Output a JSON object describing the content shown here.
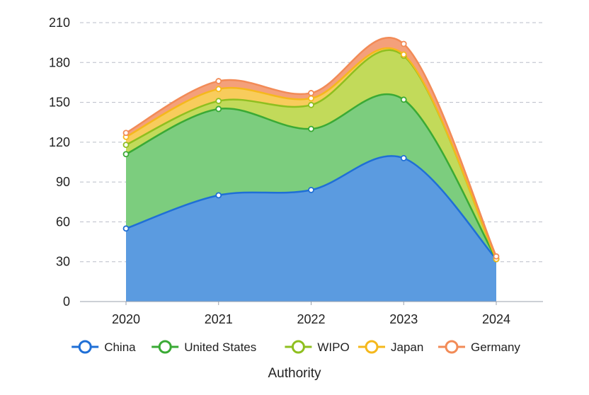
{
  "chart_data": {
    "type": "area",
    "stacked": true,
    "smooth": true,
    "categories": [
      "2020",
      "2021",
      "2022",
      "2023",
      "2024"
    ],
    "series": [
      {
        "name": "China",
        "values": [
          55,
          80,
          84,
          108,
          32
        ],
        "color": "#1f6fd6",
        "fill": "#5b9be0"
      },
      {
        "name": "United States",
        "values": [
          56,
          65,
          46,
          44,
          0
        ],
        "color": "#3aaa35",
        "fill": "#7ccd7e"
      },
      {
        "name": "WIPO",
        "values": [
          7,
          6,
          18,
          33,
          0
        ],
        "color": "#8fbf1f",
        "fill": "#c2da5a"
      },
      {
        "name": "Japan",
        "values": [
          6,
          9,
          5,
          1,
          0
        ],
        "color": "#f5b81c",
        "fill": "#f8cc5c"
      },
      {
        "name": "Germany",
        "values": [
          3,
          6,
          4,
          8,
          2
        ],
        "color": "#f28b57",
        "fill": "#f4a07a"
      }
    ],
    "ylim": [
      0,
      210
    ],
    "yticks": [
      0,
      30,
      60,
      90,
      120,
      150,
      180,
      210
    ],
    "xlabel": "Authority",
    "ylabel": "",
    "grid": "horizontal dashed",
    "legend_position": "bottom"
  }
}
